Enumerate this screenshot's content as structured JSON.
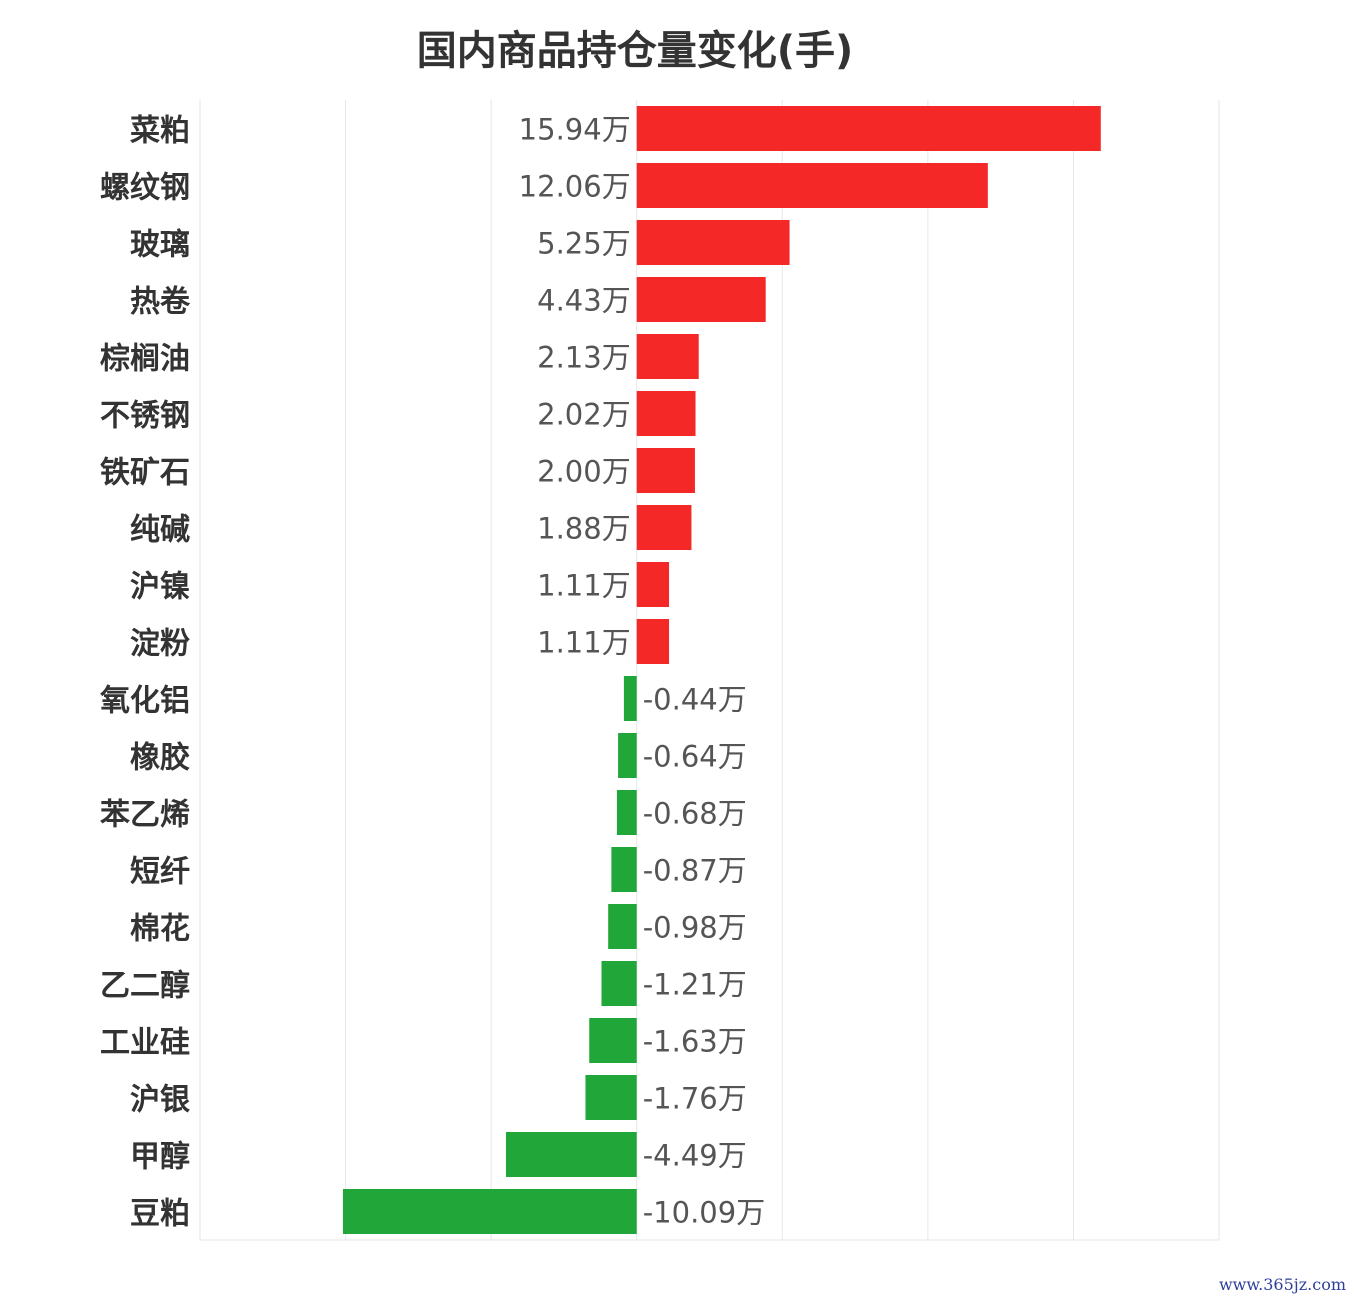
{
  "chart_data": {
    "type": "bar",
    "orientation": "horizontal",
    "title": "国内商品持仓量变化(手)",
    "xlabel": "",
    "ylabel": "",
    "xlim": [
      -15,
      20
    ],
    "grid": true,
    "unit_suffix": "万",
    "categories": [
      "菜粕",
      "螺纹钢",
      "玻璃",
      "热卷",
      "棕榈油",
      "不锈钢",
      "铁矿石",
      "纯碱",
      "沪镍",
      "淀粉",
      "氧化铝",
      "橡胶",
      "苯乙烯",
      "短纤",
      "棉花",
      "乙二醇",
      "工业硅",
      "沪银",
      "甲醇",
      "豆粕"
    ],
    "values": [
      15.94,
      12.06,
      5.25,
      4.43,
      2.13,
      2.02,
      2.0,
      1.88,
      1.11,
      1.11,
      -0.44,
      -0.64,
      -0.68,
      -0.87,
      -0.98,
      -1.21,
      -1.63,
      -1.76,
      -4.49,
      -10.09
    ],
    "labels": [
      "15.94万",
      "12.06万",
      "5.25万",
      "4.43万",
      "2.13万",
      "2.02万",
      "2.00万",
      "1.88万",
      "1.11万",
      "1.11万",
      "-0.44万",
      "-0.64万",
      "-0.68万",
      "-0.87万",
      "-0.98万",
      "-1.21万",
      "-1.63万",
      "-1.76万",
      "-4.49万",
      "-10.09万"
    ],
    "colors": {
      "positive": "#f52828",
      "negative": "#21a639",
      "grid": "#e6e6e6",
      "label": "#555555",
      "category": "#333333"
    }
  },
  "watermark": "www.365jz.com"
}
